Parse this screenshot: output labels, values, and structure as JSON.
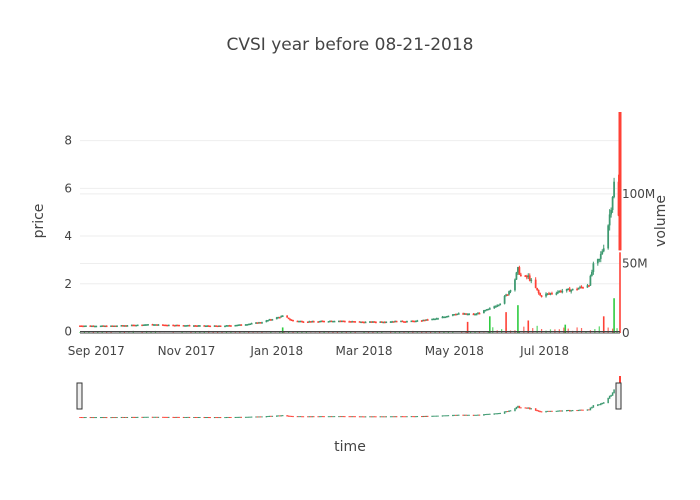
{
  "chart_data": {
    "type": "candlestick",
    "title": "CVSI year before 08-21-2018",
    "xlabel": "time",
    "ylabel": "price",
    "y2label": "volume",
    "x_tick_labels": [
      "Sep 2017",
      "Nov 2017",
      "Jan 2018",
      "Mar 2018",
      "May 2018",
      "Jul 2018"
    ],
    "x_tick_dates": [
      "2017-09-01",
      "2017-11-01",
      "2018-01-01",
      "2018-03-01",
      "2018-05-01",
      "2018-07-01"
    ],
    "x_range": [
      "2017-08-21",
      "2018-08-21"
    ],
    "y_tick_labels": [
      "0",
      "2",
      "4",
      "6",
      "8"
    ],
    "y_ticks": [
      0,
      2,
      4,
      6,
      8
    ],
    "ylim": [
      -0.4,
      9.2
    ],
    "volume_tick_labels": [
      "0",
      "50M",
      "100M"
    ],
    "volume_ticks": [
      0,
      50000000,
      100000000
    ],
    "volume_range": [
      0,
      110000000
    ],
    "colors": {
      "increasing": "#3d9970",
      "decreasing": "#ff4136",
      "volume_increasing": "#2ecc40",
      "volume_decreasing": "#ff4136",
      "grid": "#eeeeee"
    },
    "series": [
      {
        "name": "price",
        "close_points": [
          [
            "2017-08-21",
            0.25
          ],
          [
            "2017-09-10",
            0.24
          ],
          [
            "2017-09-25",
            0.27
          ],
          [
            "2017-10-05",
            0.3
          ],
          [
            "2017-10-20",
            0.28
          ],
          [
            "2017-11-10",
            0.25
          ],
          [
            "2017-11-25",
            0.24
          ],
          [
            "2017-12-10",
            0.3
          ],
          [
            "2017-12-22",
            0.4
          ],
          [
            "2017-12-30",
            0.55
          ],
          [
            "2018-01-05",
            0.65
          ],
          [
            "2018-01-12",
            0.45
          ],
          [
            "2018-01-25",
            0.42
          ],
          [
            "2018-02-10",
            0.46
          ],
          [
            "2018-03-01",
            0.4
          ],
          [
            "2018-03-20",
            0.43
          ],
          [
            "2018-04-05",
            0.44
          ],
          [
            "2018-04-20",
            0.55
          ],
          [
            "2018-05-01",
            0.75
          ],
          [
            "2018-05-15",
            0.72
          ],
          [
            "2018-05-25",
            0.95
          ],
          [
            "2018-06-01",
            1.2
          ],
          [
            "2018-06-06",
            1.6
          ],
          [
            "2018-06-10",
            2.0
          ],
          [
            "2018-06-13",
            2.6
          ],
          [
            "2018-06-16",
            2.2
          ],
          [
            "2018-06-20",
            2.3
          ],
          [
            "2018-06-24",
            1.9
          ],
          [
            "2018-06-28",
            1.5
          ],
          [
            "2018-07-05",
            1.6
          ],
          [
            "2018-07-12",
            1.7
          ],
          [
            "2018-07-20",
            1.75
          ],
          [
            "2018-07-26",
            1.85
          ],
          [
            "2018-07-31",
            2.0
          ],
          [
            "2018-08-03",
            2.75
          ],
          [
            "2018-08-07",
            3.0
          ],
          [
            "2018-08-10",
            3.6
          ],
          [
            "2018-08-13",
            4.5
          ],
          [
            "2018-08-15",
            5.3
          ],
          [
            "2018-08-17",
            6.2
          ],
          [
            "2018-08-18",
            6.6
          ],
          [
            "2018-08-20",
            4.8
          ],
          [
            "2018-08-21",
            3.6
          ]
        ],
        "spike": {
          "date": "2018-08-21",
          "high": 9.2,
          "low": 3.4
        }
      },
      {
        "name": "volume",
        "markers": [
          [
            "2018-01-05",
            4000000
          ],
          [
            "2018-05-10",
            8000000
          ],
          [
            "2018-05-25",
            12000000
          ],
          [
            "2018-06-05",
            15000000
          ],
          [
            "2018-06-13",
            20000000
          ],
          [
            "2018-06-20",
            9000000
          ],
          [
            "2018-07-15",
            6000000
          ],
          [
            "2018-08-10",
            12000000
          ],
          [
            "2018-08-17",
            25000000
          ],
          [
            "2018-08-21",
            58000000
          ]
        ]
      }
    ]
  }
}
